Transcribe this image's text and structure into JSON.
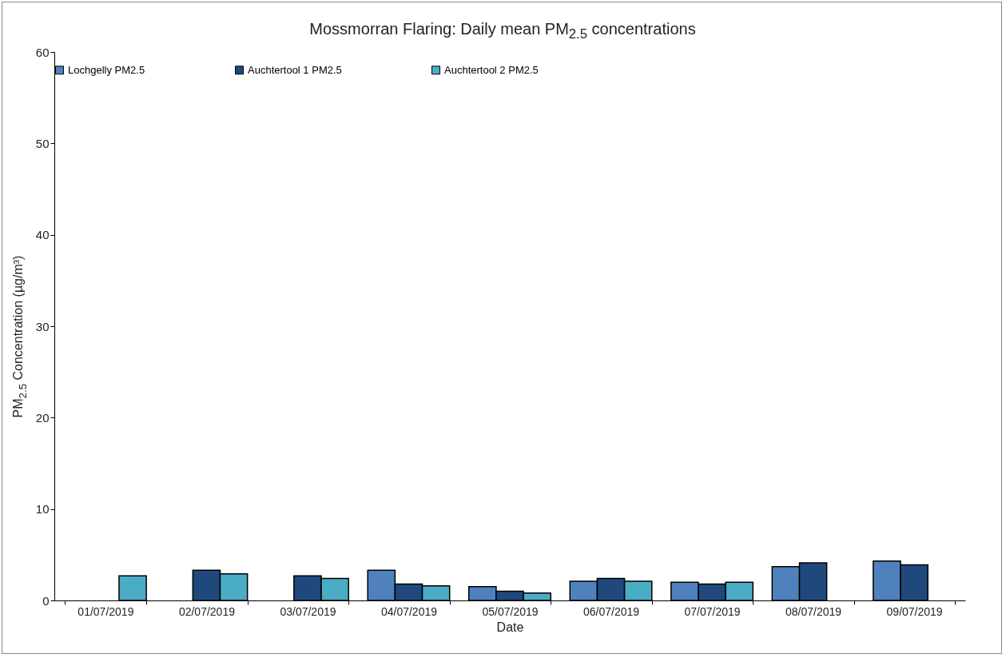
{
  "chart_data": {
    "type": "bar",
    "title": "Mossmorran Flaring: Daily mean PM$_{2.5}$ concentrations",
    "xlabel": "Date",
    "ylabel": "PM$_{2.5}$ Concentration (µg/m³)",
    "categories": [
      "01/07/2019",
      "02/07/2019",
      "03/07/2019",
      "04/07/2019",
      "05/07/2019",
      "06/07/2019",
      "07/07/2019",
      "08/07/2019",
      "09/07/2019"
    ],
    "series": [
      {
        "name": "Lochgelly PM2.5",
        "color": "#4f81bd",
        "values": [
          null,
          null,
          null,
          3.3,
          1.5,
          2.1,
          2.0,
          3.7,
          4.3
        ]
      },
      {
        "name": "Auchtertool 1 PM2.5",
        "color": "#1f497d",
        "values": [
          null,
          3.3,
          2.7,
          1.8,
          1.0,
          2.4,
          1.8,
          4.1,
          3.9
        ]
      },
      {
        "name": "Auchtertool 2 PM2.5",
        "color": "#4bacc6",
        "values": [
          2.7,
          2.9,
          2.4,
          1.6,
          0.8,
          2.1,
          2.0,
          null,
          null
        ]
      }
    ],
    "ylim": [
      0,
      60
    ],
    "yticks": [
      0,
      10,
      20,
      30,
      40,
      50,
      60
    ],
    "grid": false,
    "legend": "top"
  }
}
